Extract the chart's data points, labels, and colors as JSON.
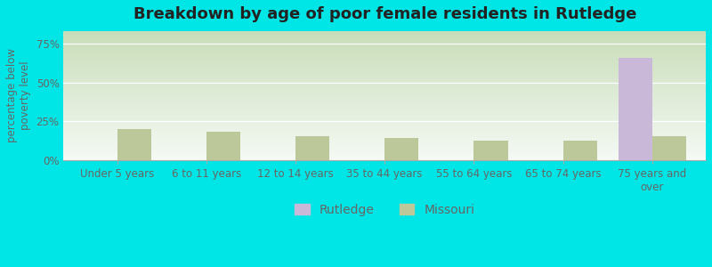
{
  "title": "Breakdown by age of poor female residents in Rutledge",
  "categories": [
    "Under 5 years",
    "6 to 11 years",
    "12 to 14 years",
    "35 to 44 years",
    "55 to 64 years",
    "65 to 74 years",
    "75 years and\nover"
  ],
  "rutledge_values": [
    0,
    0,
    0,
    0,
    0,
    0,
    66.0
  ],
  "missouri_values": [
    20.0,
    18.5,
    15.5,
    14.5,
    12.5,
    12.5,
    15.5
  ],
  "rutledge_color": "#c9b8d8",
  "missouri_color": "#bdc89a",
  "ylabel": "percentage below\npoverty level",
  "ylim_max": 83,
  "yticks": [
    0,
    25,
    50,
    75
  ],
  "ytick_labels": [
    "0%",
    "25%",
    "50%",
    "75%"
  ],
  "outer_bg": "#00e5e5",
  "plot_bg_topleft": "#c8ddb8",
  "plot_bg_topright": "#e8f0e0",
  "plot_bg_bottom": "#f5faf5",
  "bar_width": 0.38,
  "figsize": [
    8.0,
    3.0
  ],
  "dpi": 100,
  "title_fontsize": 13,
  "tick_fontsize": 8.5,
  "legend_fontsize": 10,
  "axis_color": "#666666"
}
